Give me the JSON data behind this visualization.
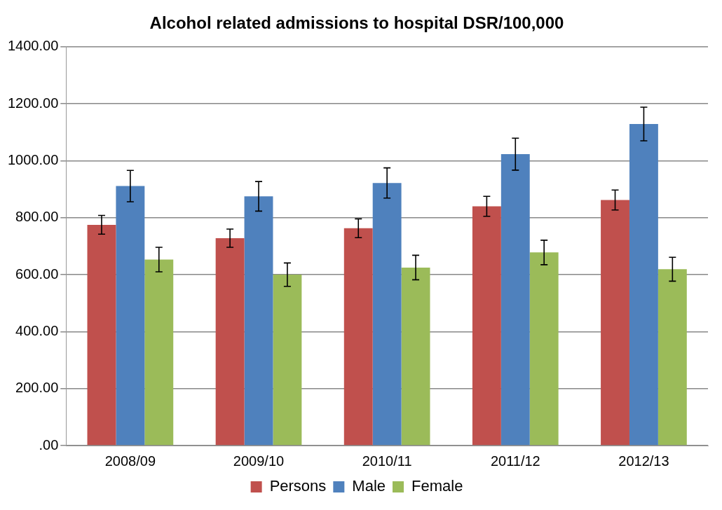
{
  "chart_data": {
    "type": "bar",
    "title": "Alcohol related admissions to hospital DSR/100,000",
    "categories": [
      "2008/09",
      "2009/10",
      "2010/11",
      "2011/12",
      "2012/13"
    ],
    "series": [
      {
        "name": "Persons",
        "color": "#c0504d",
        "values": [
          775,
          728,
          763,
          840,
          862
        ],
        "errors": [
          33,
          32,
          33,
          35,
          35
        ]
      },
      {
        "name": "Male",
        "color": "#4f81bd",
        "values": [
          911,
          875,
          922,
          1023,
          1129
        ],
        "errors": [
          55,
          52,
          53,
          56,
          59
        ]
      },
      {
        "name": "Female",
        "color": "#9bbb59",
        "values": [
          653,
          600,
          625,
          678,
          619
        ],
        "errors": [
          43,
          41,
          43,
          43,
          42
        ]
      }
    ],
    "ylim": [
      0,
      1400
    ],
    "yticks": [
      {
        "value": 0,
        "label": ".00"
      },
      {
        "value": 200,
        "label": "200.00"
      },
      {
        "value": 400,
        "label": "400.00"
      },
      {
        "value": 600,
        "label": "600.00"
      },
      {
        "value": 800,
        "label": "800.00"
      },
      {
        "value": 1000,
        "label": "1000.00"
      },
      {
        "value": 1200,
        "label": "1200.00"
      },
      {
        "value": 1400,
        "label": "1400.00"
      }
    ],
    "grid": "y",
    "legend": "bottom"
  }
}
